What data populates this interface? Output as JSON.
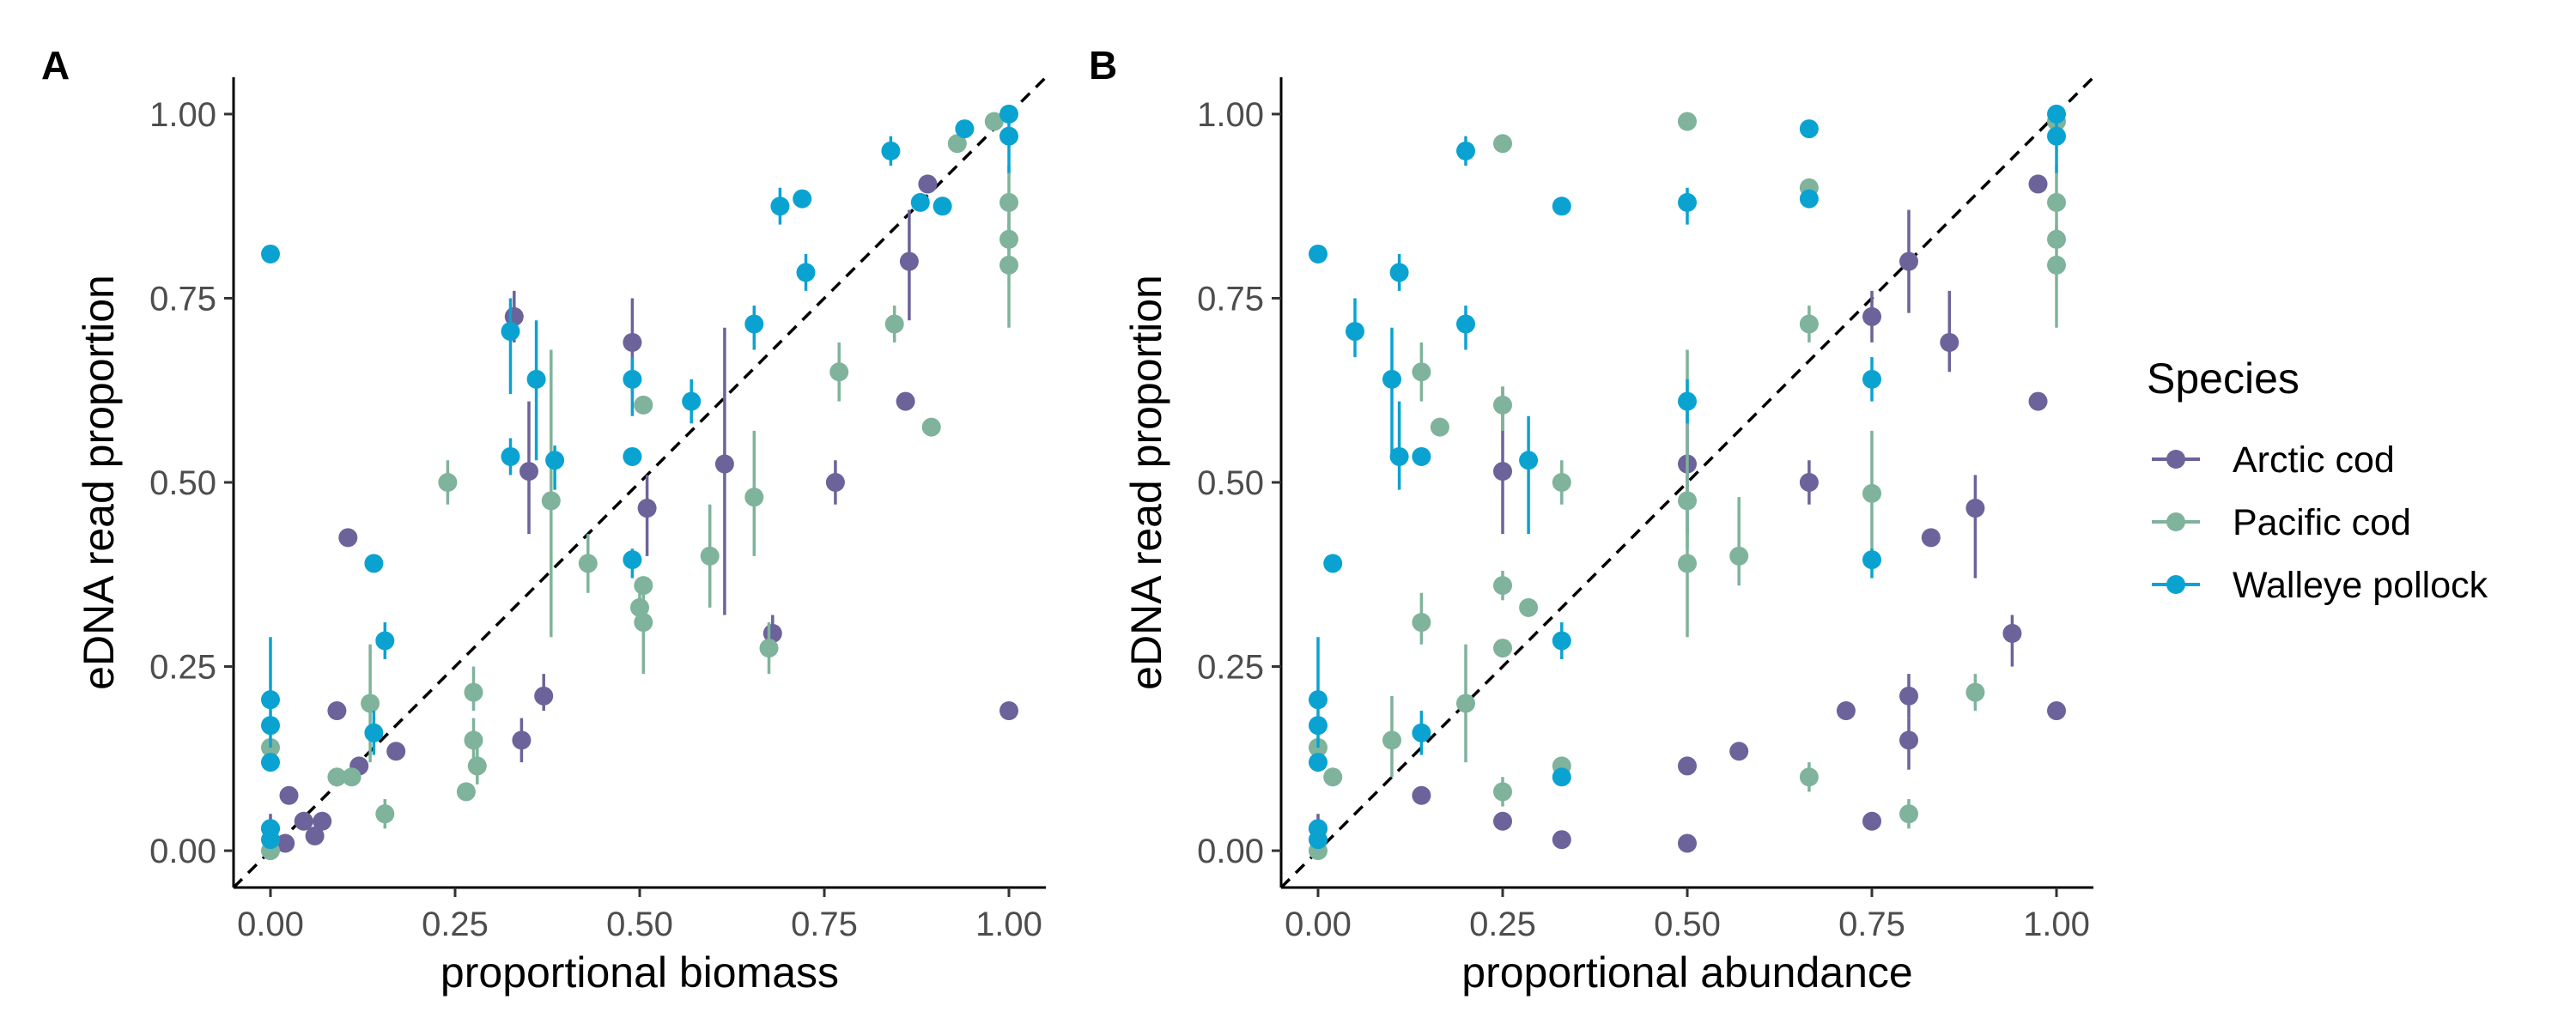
{
  "colors": {
    "Arctic cod": "#6B6399",
    "Pacific cod": "#7FB39B",
    "Walleye pollock": "#0AA3D1"
  },
  "legend": {
    "title": "Species",
    "items": [
      {
        "name": "Arctic cod",
        "color": "#6B6399"
      },
      {
        "name": "Pacific cod",
        "color": "#7FB39B"
      },
      {
        "name": "Walleye pollock",
        "color": "#0AA3D1"
      }
    ],
    "position": "right"
  },
  "chart_data": [
    {
      "type": "scatter",
      "panel": "A",
      "xlabel": "proportional biomass",
      "ylabel": "eDNA read proportion",
      "xlim": [
        -0.05,
        1.05
      ],
      "ylim": [
        -0.05,
        1.05
      ],
      "ticks": [
        0,
        0.25,
        0.5,
        0.75,
        1
      ],
      "tick_labels": [
        "0.00",
        "0.25",
        "0.50",
        "0.75",
        "1.00"
      ],
      "reference_line": "y = x (dashed)",
      "grid": false,
      "series": [
        {
          "name": "Arctic cod",
          "points": [
            {
              "x": 0.0,
              "y": 0.03,
              "lo": 0.01,
              "hi": 0.05
            },
            {
              "x": 0.02,
              "y": 0.01
            },
            {
              "x": 0.025,
              "y": 0.075
            },
            {
              "x": 0.045,
              "y": 0.04
            },
            {
              "x": 0.06,
              "y": 0.02
            },
            {
              "x": 0.07,
              "y": 0.04
            },
            {
              "x": 0.09,
              "y": 0.19
            },
            {
              "x": 0.105,
              "y": 0.425
            },
            {
              "x": 0.12,
              "y": 0.115
            },
            {
              "x": 0.17,
              "y": 0.135
            },
            {
              "x": 0.33,
              "y": 0.725,
              "lo": 0.69,
              "hi": 0.76
            },
            {
              "x": 0.34,
              "y": 0.15,
              "lo": 0.12,
              "hi": 0.18
            },
            {
              "x": 0.35,
              "y": 0.515,
              "lo": 0.43,
              "hi": 0.61
            },
            {
              "x": 0.37,
              "y": 0.21,
              "lo": 0.19,
              "hi": 0.24
            },
            {
              "x": 0.49,
              "y": 0.69,
              "lo": 0.62,
              "hi": 0.75
            },
            {
              "x": 0.51,
              "y": 0.465,
              "lo": 0.4,
              "hi": 0.51
            },
            {
              "x": 0.615,
              "y": 0.525,
              "lo": 0.32,
              "hi": 0.71
            },
            {
              "x": 0.68,
              "y": 0.295,
              "lo": 0.27,
              "hi": 0.32
            },
            {
              "x": 0.765,
              "y": 0.5,
              "lo": 0.47,
              "hi": 0.53
            },
            {
              "x": 0.86,
              "y": 0.61
            },
            {
              "x": 0.865,
              "y": 0.8,
              "lo": 0.72,
              "hi": 0.87
            },
            {
              "x": 0.89,
              "y": 0.905
            },
            {
              "x": 1.0,
              "y": 0.19
            }
          ]
        },
        {
          "name": "Pacific cod",
          "points": [
            {
              "x": 0.0,
              "y": 0.0
            },
            {
              "x": 0.0,
              "y": 0.14
            },
            {
              "x": 0.09,
              "y": 0.1
            },
            {
              "x": 0.11,
              "y": 0.1
            },
            {
              "x": 0.135,
              "y": 0.2,
              "lo": 0.12,
              "hi": 0.28
            },
            {
              "x": 0.155,
              "y": 0.05,
              "lo": 0.03,
              "hi": 0.07
            },
            {
              "x": 0.24,
              "y": 0.5,
              "lo": 0.47,
              "hi": 0.53
            },
            {
              "x": 0.265,
              "y": 0.08
            },
            {
              "x": 0.275,
              "y": 0.215,
              "lo": 0.19,
              "hi": 0.25
            },
            {
              "x": 0.275,
              "y": 0.15,
              "lo": 0.12,
              "hi": 0.18
            },
            {
              "x": 0.28,
              "y": 0.115,
              "lo": 0.09,
              "hi": 0.14
            },
            {
              "x": 0.38,
              "y": 0.475,
              "lo": 0.29,
              "hi": 0.68
            },
            {
              "x": 0.43,
              "y": 0.39,
              "lo": 0.35,
              "hi": 0.43
            },
            {
              "x": 0.5,
              "y": 0.33,
              "lo": 0.3,
              "hi": 0.36
            },
            {
              "x": 0.505,
              "y": 0.605
            },
            {
              "x": 0.505,
              "y": 0.36
            },
            {
              "x": 0.505,
              "y": 0.31,
              "lo": 0.24,
              "hi": 0.35
            },
            {
              "x": 0.595,
              "y": 0.4,
              "lo": 0.33,
              "hi": 0.47
            },
            {
              "x": 0.655,
              "y": 0.48,
              "lo": 0.4,
              "hi": 0.57
            },
            {
              "x": 0.675,
              "y": 0.275,
              "lo": 0.24,
              "hi": 0.31
            },
            {
              "x": 0.77,
              "y": 0.65,
              "lo": 0.61,
              "hi": 0.69
            },
            {
              "x": 0.845,
              "y": 0.715,
              "lo": 0.69,
              "hi": 0.74
            },
            {
              "x": 0.895,
              "y": 0.575
            },
            {
              "x": 0.93,
              "y": 0.96
            },
            {
              "x": 0.98,
              "y": 0.99
            },
            {
              "x": 1.0,
              "y": 0.88,
              "lo": 0.84,
              "hi": 0.93
            },
            {
              "x": 1.0,
              "y": 0.83,
              "lo": 0.79,
              "hi": 0.87
            },
            {
              "x": 1.0,
              "y": 0.795,
              "lo": 0.71,
              "hi": 0.85
            }
          ]
        },
        {
          "name": "Walleye pollock",
          "points": [
            {
              "x": 0.0,
              "y": 0.81
            },
            {
              "x": 0.0,
              "y": 0.205,
              "lo": 0.14,
              "hi": 0.29
            },
            {
              "x": 0.0,
              "y": 0.17
            },
            {
              "x": 0.0,
              "y": 0.12
            },
            {
              "x": 0.0,
              "y": 0.03
            },
            {
              "x": 0.0,
              "y": 0.015
            },
            {
              "x": 0.14,
              "y": 0.39
            },
            {
              "x": 0.14,
              "y": 0.16,
              "lo": 0.13,
              "hi": 0.19
            },
            {
              "x": 0.155,
              "y": 0.285,
              "lo": 0.26,
              "hi": 0.31
            },
            {
              "x": 0.325,
              "y": 0.705,
              "lo": 0.62,
              "hi": 0.75
            },
            {
              "x": 0.325,
              "y": 0.535,
              "lo": 0.51,
              "hi": 0.56
            },
            {
              "x": 0.36,
              "y": 0.64,
              "lo": 0.53,
              "hi": 0.72
            },
            {
              "x": 0.385,
              "y": 0.53,
              "lo": 0.49,
              "hi": 0.55
            },
            {
              "x": 0.49,
              "y": 0.64,
              "lo": 0.59,
              "hi": 0.67
            },
            {
              "x": 0.49,
              "y": 0.535
            },
            {
              "x": 0.49,
              "y": 0.395,
              "lo": 0.37,
              "hi": 0.41
            },
            {
              "x": 0.57,
              "y": 0.61,
              "lo": 0.58,
              "hi": 0.64
            },
            {
              "x": 0.655,
              "y": 0.715,
              "lo": 0.68,
              "hi": 0.74
            },
            {
              "x": 0.69,
              "y": 0.875,
              "lo": 0.85,
              "hi": 0.9
            },
            {
              "x": 0.72,
              "y": 0.885
            },
            {
              "x": 0.725,
              "y": 0.785,
              "lo": 0.76,
              "hi": 0.81
            },
            {
              "x": 0.84,
              "y": 0.95,
              "lo": 0.93,
              "hi": 0.97
            },
            {
              "x": 0.88,
              "y": 0.88
            },
            {
              "x": 0.91,
              "y": 0.875
            },
            {
              "x": 0.94,
              "y": 0.98
            },
            {
              "x": 1.0,
              "y": 1.0
            },
            {
              "x": 1.0,
              "y": 0.97,
              "lo": 0.92,
              "hi": 1.0
            }
          ]
        }
      ]
    },
    {
      "type": "scatter",
      "panel": "B",
      "xlabel": "proportional abundance",
      "ylabel": "eDNA read proportion",
      "xlim": [
        -0.05,
        1.05
      ],
      "ylim": [
        -0.05,
        1.05
      ],
      "ticks": [
        0,
        0.25,
        0.5,
        0.75,
        1
      ],
      "tick_labels": [
        "0.00",
        "0.25",
        "0.50",
        "0.75",
        "1.00"
      ],
      "reference_line": "y = x (dashed)",
      "grid": false,
      "series": [
        {
          "name": "Arctic cod",
          "points": [
            {
              "x": 0.0,
              "y": 0.03,
              "lo": 0.01,
              "hi": 0.05
            },
            {
              "x": 0.14,
              "y": 0.075
            },
            {
              "x": 0.25,
              "y": 0.515,
              "lo": 0.43,
              "hi": 0.63
            },
            {
              "x": 0.25,
              "y": 0.04
            },
            {
              "x": 0.33,
              "y": 0.015
            },
            {
              "x": 0.5,
              "y": 0.525,
              "lo": 0.43,
              "hi": 0.61
            },
            {
              "x": 0.5,
              "y": 0.115
            },
            {
              "x": 0.5,
              "y": 0.01
            },
            {
              "x": 0.57,
              "y": 0.135
            },
            {
              "x": 0.665,
              "y": 0.5,
              "lo": 0.47,
              "hi": 0.53
            },
            {
              "x": 0.715,
              "y": 0.19
            },
            {
              "x": 0.75,
              "y": 0.725,
              "lo": 0.69,
              "hi": 0.76
            },
            {
              "x": 0.75,
              "y": 0.04
            },
            {
              "x": 0.8,
              "y": 0.8,
              "lo": 0.73,
              "hi": 0.87
            },
            {
              "x": 0.8,
              "y": 0.21,
              "lo": 0.18,
              "hi": 0.24
            },
            {
              "x": 0.8,
              "y": 0.15,
              "lo": 0.11,
              "hi": 0.18
            },
            {
              "x": 0.83,
              "y": 0.425
            },
            {
              "x": 0.855,
              "y": 0.69,
              "lo": 0.65,
              "hi": 0.76
            },
            {
              "x": 0.89,
              "y": 0.465,
              "lo": 0.37,
              "hi": 0.51
            },
            {
              "x": 0.94,
              "y": 0.295,
              "lo": 0.25,
              "hi": 0.32
            },
            {
              "x": 0.975,
              "y": 0.905
            },
            {
              "x": 0.975,
              "y": 0.61
            },
            {
              "x": 1.0,
              "y": 0.19
            }
          ]
        },
        {
          "name": "Pacific cod",
          "points": [
            {
              "x": 0.0,
              "y": 0.14
            },
            {
              "x": 0.0,
              "y": 0.0
            },
            {
              "x": 0.02,
              "y": 0.1
            },
            {
              "x": 0.1,
              "y": 0.15,
              "lo": 0.1,
              "hi": 0.21
            },
            {
              "x": 0.14,
              "y": 0.65,
              "lo": 0.61,
              "hi": 0.69
            },
            {
              "x": 0.14,
              "y": 0.31,
              "lo": 0.28,
              "hi": 0.35
            },
            {
              "x": 0.165,
              "y": 0.575
            },
            {
              "x": 0.2,
              "y": 0.2,
              "lo": 0.12,
              "hi": 0.28
            },
            {
              "x": 0.25,
              "y": 0.96
            },
            {
              "x": 0.25,
              "y": 0.605,
              "lo": 0.57,
              "hi": 0.63
            },
            {
              "x": 0.25,
              "y": 0.36,
              "lo": 0.34,
              "hi": 0.38
            },
            {
              "x": 0.25,
              "y": 0.275
            },
            {
              "x": 0.25,
              "y": 0.08,
              "lo": 0.06,
              "hi": 0.1
            },
            {
              "x": 0.285,
              "y": 0.33
            },
            {
              "x": 0.33,
              "y": 0.5,
              "lo": 0.47,
              "hi": 0.53
            },
            {
              "x": 0.33,
              "y": 0.115
            },
            {
              "x": 0.5,
              "y": 0.99
            },
            {
              "x": 0.5,
              "y": 0.475,
              "lo": 0.41,
              "hi": 0.68
            },
            {
              "x": 0.5,
              "y": 0.39,
              "lo": 0.29,
              "hi": 0.44
            },
            {
              "x": 0.57,
              "y": 0.4,
              "lo": 0.36,
              "hi": 0.48
            },
            {
              "x": 0.665,
              "y": 0.9
            },
            {
              "x": 0.665,
              "y": 0.715,
              "lo": 0.69,
              "hi": 0.74
            },
            {
              "x": 0.665,
              "y": 0.1,
              "lo": 0.08,
              "hi": 0.12
            },
            {
              "x": 0.75,
              "y": 0.485,
              "lo": 0.4,
              "hi": 0.57
            },
            {
              "x": 0.8,
              "y": 0.05,
              "lo": 0.03,
              "hi": 0.07
            },
            {
              "x": 0.89,
              "y": 0.215,
              "lo": 0.19,
              "hi": 0.24
            },
            {
              "x": 1.0,
              "y": 0.99
            },
            {
              "x": 1.0,
              "y": 0.88,
              "lo": 0.84,
              "hi": 0.93
            },
            {
              "x": 1.0,
              "y": 0.83
            },
            {
              "x": 1.0,
              "y": 0.795,
              "lo": 0.71,
              "hi": 0.85
            }
          ]
        },
        {
          "name": "Walleye pollock",
          "points": [
            {
              "x": 0.0,
              "y": 0.81
            },
            {
              "x": 0.0,
              "y": 0.205,
              "lo": 0.14,
              "hi": 0.29
            },
            {
              "x": 0.0,
              "y": 0.17
            },
            {
              "x": 0.0,
              "y": 0.12
            },
            {
              "x": 0.0,
              "y": 0.03
            },
            {
              "x": 0.0,
              "y": 0.015
            },
            {
              "x": 0.02,
              "y": 0.39
            },
            {
              "x": 0.05,
              "y": 0.705,
              "lo": 0.67,
              "hi": 0.75
            },
            {
              "x": 0.1,
              "y": 0.64,
              "lo": 0.53,
              "hi": 0.71
            },
            {
              "x": 0.11,
              "y": 0.785,
              "lo": 0.76,
              "hi": 0.81
            },
            {
              "x": 0.11,
              "y": 0.535,
              "lo": 0.49,
              "hi": 0.61
            },
            {
              "x": 0.14,
              "y": 0.535
            },
            {
              "x": 0.14,
              "y": 0.16,
              "lo": 0.13,
              "hi": 0.19
            },
            {
              "x": 0.2,
              "y": 0.95,
              "lo": 0.93,
              "hi": 0.97
            },
            {
              "x": 0.2,
              "y": 0.715,
              "lo": 0.68,
              "hi": 0.74
            },
            {
              "x": 0.285,
              "y": 0.53,
              "lo": 0.43,
              "hi": 0.59
            },
            {
              "x": 0.33,
              "y": 0.875
            },
            {
              "x": 0.33,
              "y": 0.285,
              "lo": 0.26,
              "hi": 0.31
            },
            {
              "x": 0.33,
              "y": 0.1
            },
            {
              "x": 0.5,
              "y": 0.88,
              "lo": 0.85,
              "hi": 0.9
            },
            {
              "x": 0.5,
              "y": 0.61,
              "lo": 0.58,
              "hi": 0.64
            },
            {
              "x": 0.665,
              "y": 0.98
            },
            {
              "x": 0.665,
              "y": 0.885
            },
            {
              "x": 0.75,
              "y": 0.64,
              "lo": 0.61,
              "hi": 0.67
            },
            {
              "x": 0.75,
              "y": 0.395,
              "lo": 0.37,
              "hi": 0.41
            },
            {
              "x": 1.0,
              "y": 1.0
            },
            {
              "x": 1.0,
              "y": 0.97,
              "lo": 0.92,
              "hi": 1.0
            }
          ]
        }
      ]
    }
  ]
}
